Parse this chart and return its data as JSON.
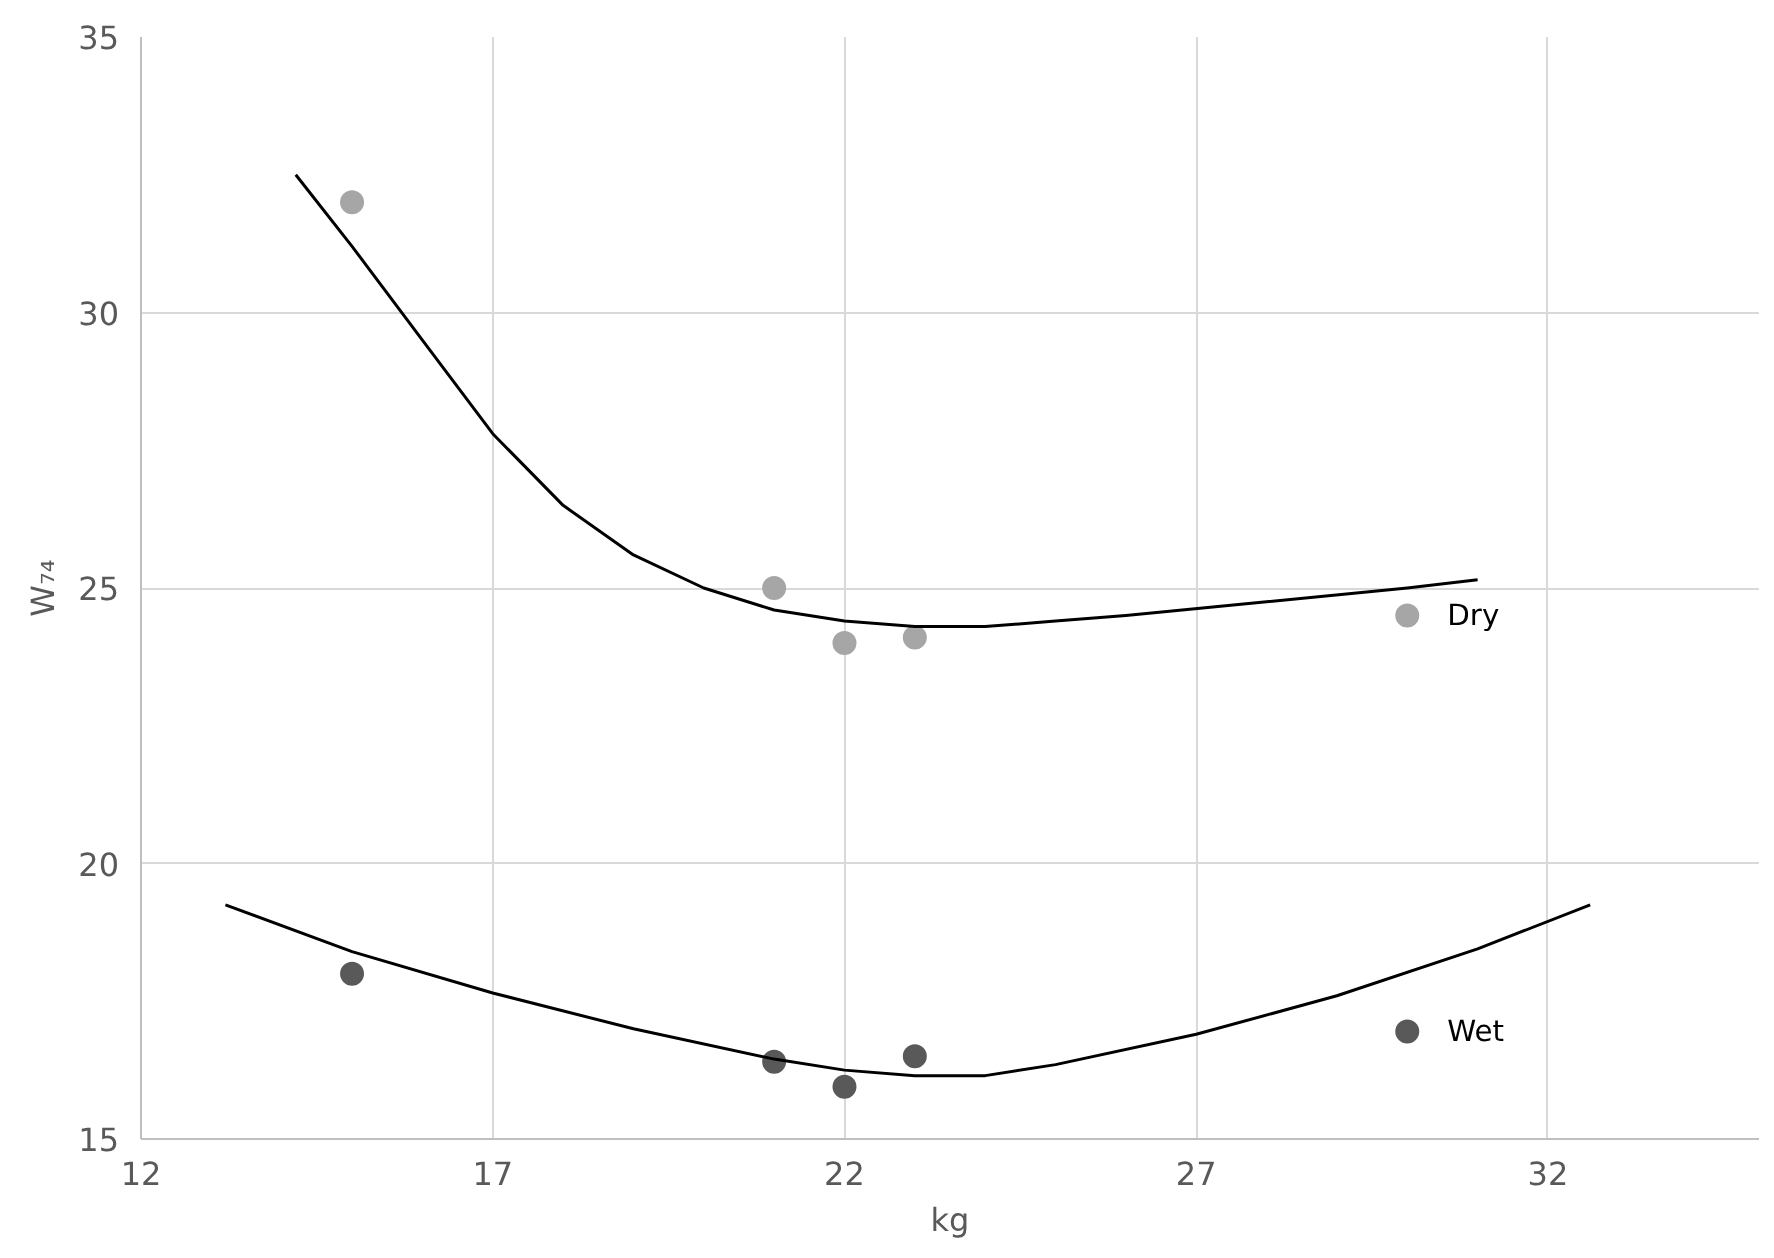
{
  "chart_data": {
    "type": "scatter",
    "xlabel": "kg",
    "ylabel": "W₇₄",
    "xlim": [
      12,
      35
    ],
    "xticks": [
      12,
      17,
      22,
      27,
      32
    ],
    "ylim": [
      15,
      35
    ],
    "yticks": [
      15,
      20,
      25,
      30,
      35
    ],
    "grid": true,
    "series": [
      {
        "name": "Dry",
        "marker": "circle",
        "color": "#a6a6a6",
        "x": [
          15,
          21,
          22,
          23,
          30
        ],
        "values": [
          32,
          25,
          24,
          24.1,
          24.5
        ]
      },
      {
        "type": "line",
        "color": "#000000",
        "x": [
          14.2,
          15,
          16,
          17,
          18,
          19,
          20,
          21,
          22,
          23,
          24,
          25,
          26,
          28,
          30,
          31
        ],
        "values": [
          32.5,
          31.2,
          29.5,
          27.8,
          26.5,
          25.6,
          25,
          24.6,
          24.4,
          24.3,
          24.3,
          24.4,
          24.5,
          24.75,
          25,
          25.15
        ]
      },
      {
        "name": "Wet",
        "marker": "circle",
        "color": "#595959",
        "x": [
          15,
          21,
          22,
          23,
          30
        ],
        "values": [
          18,
          16.4,
          15.95,
          16.5,
          16.95
        ]
      },
      {
        "type": "line",
        "color": "#000000",
        "x": [
          13.2,
          15,
          17,
          19,
          21,
          22,
          23,
          24,
          25,
          27,
          29,
          31,
          32.6
        ],
        "values": [
          19.25,
          18.4,
          17.65,
          17,
          16.45,
          16.25,
          16.15,
          16.15,
          16.35,
          16.9,
          17.6,
          18.45,
          19.25
        ]
      }
    ]
  }
}
